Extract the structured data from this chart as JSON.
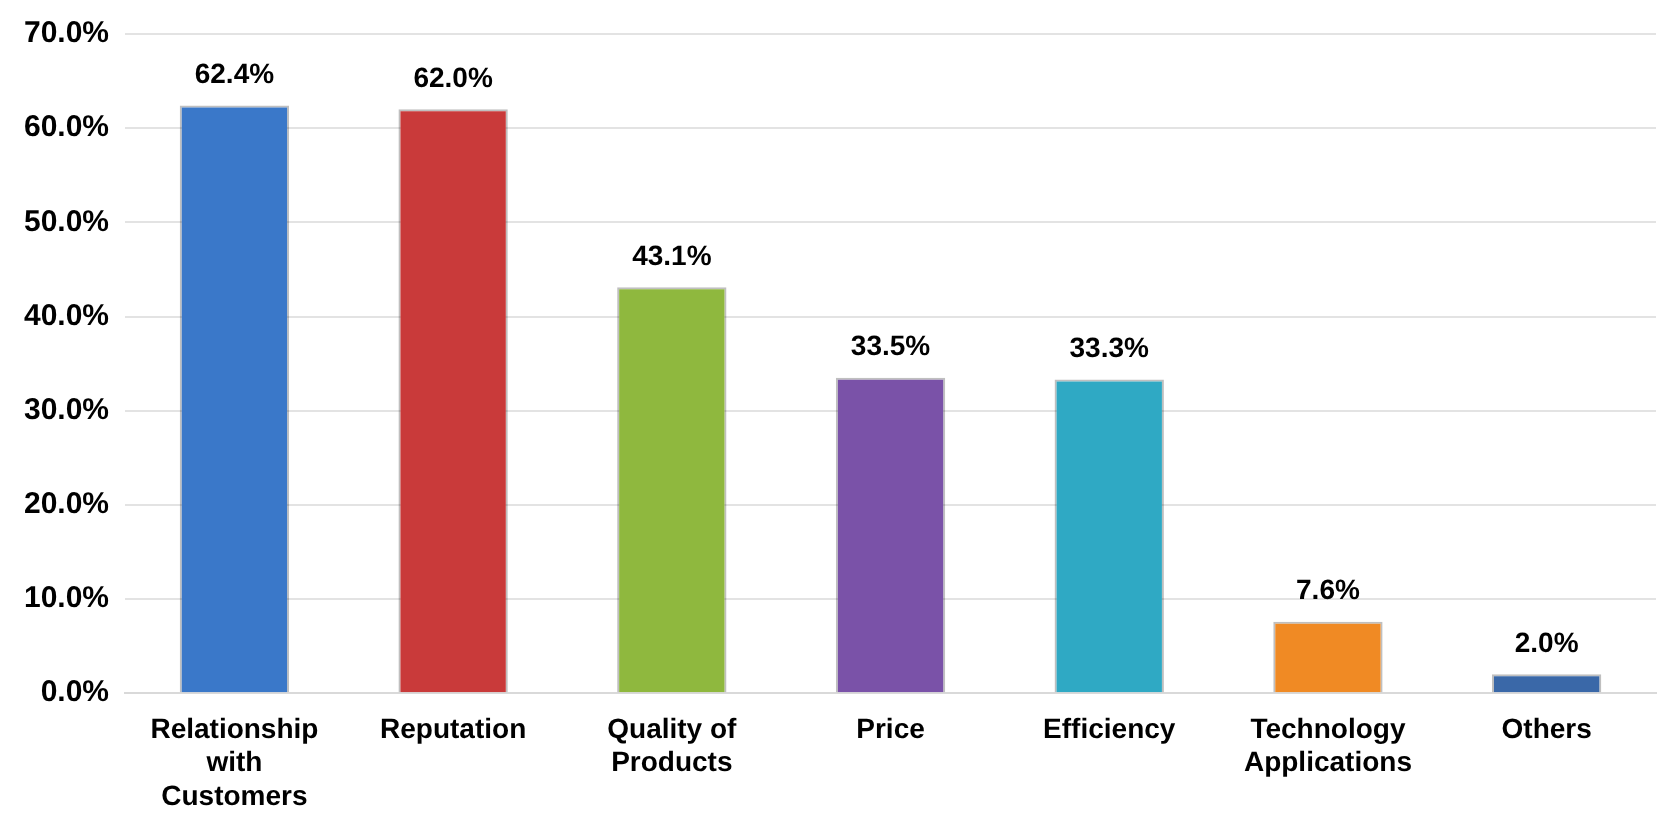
{
  "chart_data": {
    "type": "bar",
    "categories": [
      "Relationship with Customers",
      "Reputation",
      "Quality of Products",
      "Price",
      "Efficiency",
      "Technology Applications",
      "Others"
    ],
    "values": [
      62.4,
      62.0,
      43.1,
      33.5,
      33.3,
      7.6,
      2.0
    ],
    "value_labels": [
      "62.4%",
      "62.0%",
      "43.1%",
      "33.5%",
      "33.3%",
      "7.6%",
      "2.0%"
    ],
    "colors": [
      "#3a78c9",
      "#c93a3a",
      "#8fb83e",
      "#7a52a8",
      "#2fa9c4",
      "#f08a24",
      "#3a68a8"
    ],
    "ylim": [
      0,
      70
    ],
    "yticks": [
      {
        "value": 0,
        "label": "0.0%"
      },
      {
        "value": 10,
        "label": "10.0%"
      },
      {
        "value": 20,
        "label": "20.0%"
      },
      {
        "value": 30,
        "label": "30.0%"
      },
      {
        "value": 40,
        "label": "40.0%"
      },
      {
        "value": 50,
        "label": "50.0%"
      },
      {
        "value": 60,
        "label": "60.0%"
      },
      {
        "value": 70,
        "label": "70.0%"
      }
    ],
    "grid": "y",
    "legend": false
  }
}
